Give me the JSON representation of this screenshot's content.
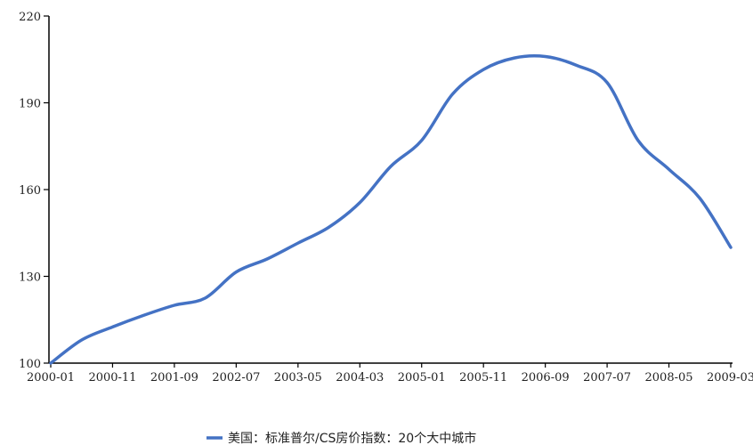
{
  "chart_data": {
    "type": "line",
    "title": "",
    "xlabel": "",
    "ylabel": "",
    "ylim": [
      100,
      220
    ],
    "yticks": [
      100,
      130,
      160,
      190,
      220
    ],
    "grid": false,
    "legend_position": "bottom-center",
    "x_tick_labels": [
      "2000-01",
      "2000-11",
      "2001-09",
      "2002-07",
      "2003-05",
      "2004-03",
      "2005-01",
      "2005-11",
      "2006-09",
      "2007-07",
      "2008-05",
      "2009-03"
    ],
    "series": [
      {
        "name": "美国：标准普尔/CS房价指数：20个大中城市",
        "color": "#4472C4",
        "points": [
          [
            "2000-01",
            100.0
          ],
          [
            "2000-06",
            108.0
          ],
          [
            "2000-11",
            112.5
          ],
          [
            "2001-04",
            116.5
          ],
          [
            "2001-09",
            120.0
          ],
          [
            "2002-02",
            122.5
          ],
          [
            "2002-07",
            131.5
          ],
          [
            "2002-12",
            136.0
          ],
          [
            "2003-05",
            141.5
          ],
          [
            "2003-10",
            147.0
          ],
          [
            "2004-03",
            155.5
          ],
          [
            "2004-08",
            168.0
          ],
          [
            "2005-01",
            177.0
          ],
          [
            "2005-06",
            193.0
          ],
          [
            "2005-11",
            201.5
          ],
          [
            "2006-04",
            205.5
          ],
          [
            "2006-09",
            206.0
          ],
          [
            "2007-02",
            203.0
          ],
          [
            "2007-07",
            197.0
          ],
          [
            "2007-12",
            177.0
          ],
          [
            "2008-05",
            167.0
          ],
          [
            "2008-10",
            157.0
          ],
          [
            "2009-03",
            140.0
          ]
        ]
      }
    ]
  }
}
